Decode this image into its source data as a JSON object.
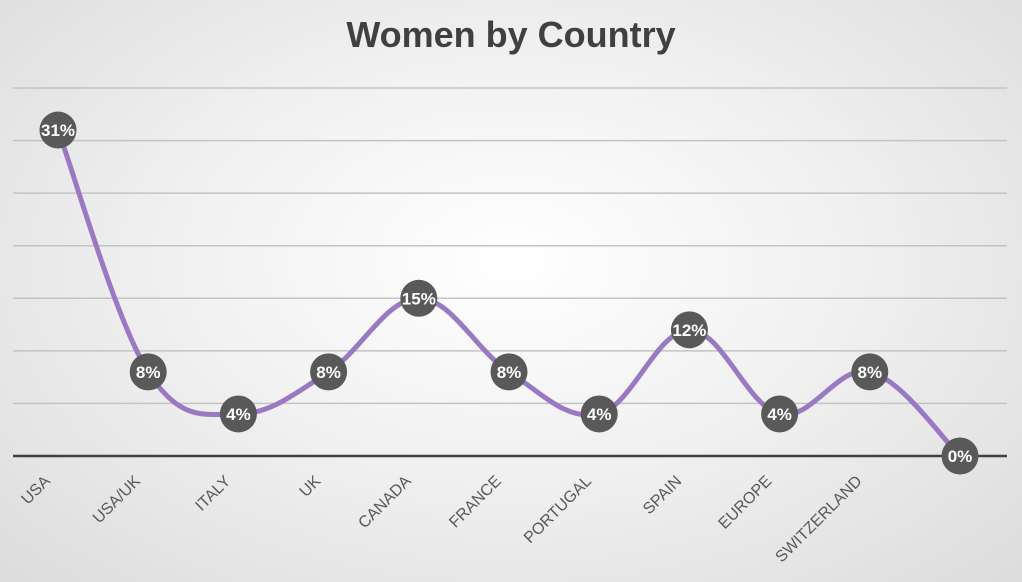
{
  "chart_data": {
    "type": "line",
    "title": "Women by Country",
    "xlabel": "",
    "ylabel": "",
    "categories": [
      "USA",
      "USA/UK",
      "ITALY",
      "UK",
      "CANADA",
      "FRANCE",
      "PORTUGAL",
      "SPAIN",
      "EUROPE",
      "SWITZERLAND",
      ""
    ],
    "series": [
      {
        "values": [
          31,
          8,
          4,
          8,
          15,
          8,
          4,
          12,
          4,
          8,
          0
        ],
        "labels": [
          "31%",
          "8%",
          "4%",
          "8%",
          "15%",
          "8%",
          "4%",
          "12%",
          "4%",
          "8%",
          "0%"
        ]
      }
    ],
    "ylim": [
      0,
      35
    ],
    "y_gridline_step": 5,
    "y_tick_labels_shown": false,
    "grid": true,
    "smooth": true,
    "legend": "none",
    "colors": {
      "line": "#9a79c2",
      "marker": "#595959",
      "marker_text": "#ffffff",
      "gridline": "#c4c4c4",
      "axis": "#404040",
      "title": "#404040",
      "tick_text": "#595959"
    }
  }
}
